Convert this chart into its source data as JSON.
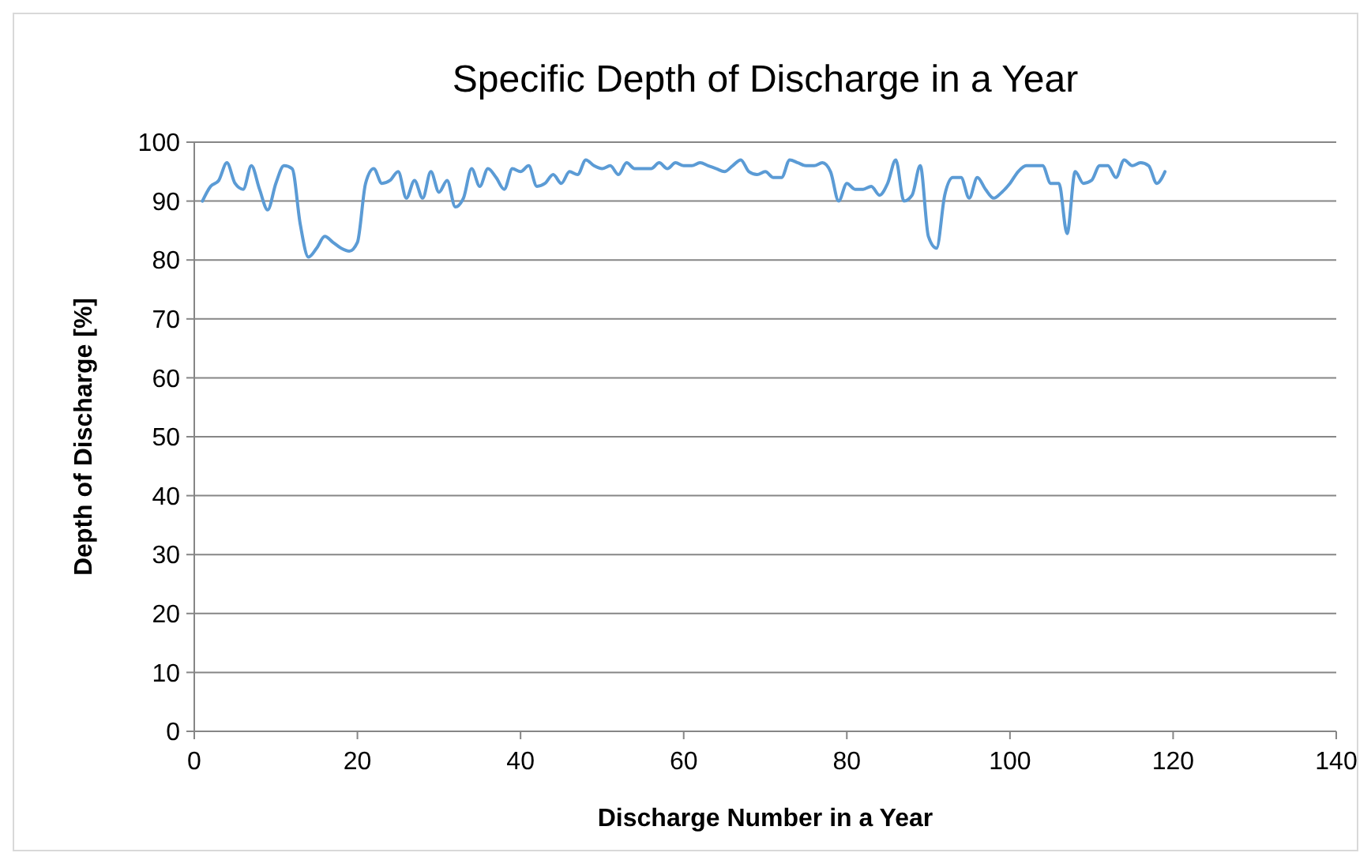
{
  "chart_data": {
    "type": "line",
    "title": "Specific Depth of Discharge in a Year",
    "xlabel": "Discharge Number in a Year",
    "ylabel": "Depth of Discharge  [%]",
    "x": [
      1,
      2,
      3,
      4,
      5,
      6,
      7,
      8,
      9,
      10,
      11,
      12,
      13,
      14,
      15,
      16,
      17,
      18,
      19,
      20,
      21,
      22,
      23,
      24,
      25,
      26,
      27,
      28,
      29,
      30,
      31,
      32,
      33,
      34,
      35,
      36,
      37,
      38,
      39,
      40,
      41,
      42,
      43,
      44,
      45,
      46,
      47,
      48,
      49,
      50,
      51,
      52,
      53,
      54,
      55,
      56,
      57,
      58,
      59,
      60,
      61,
      62,
      63,
      64,
      65,
      66,
      67,
      68,
      69,
      70,
      71,
      72,
      73,
      74,
      75,
      76,
      77,
      78,
      79,
      80,
      81,
      82,
      83,
      84,
      85,
      86,
      87,
      88,
      89,
      90,
      91,
      92,
      93,
      94,
      95,
      96,
      97,
      98,
      99,
      100,
      101,
      102,
      103,
      104,
      105,
      106,
      107,
      108,
      109,
      110,
      111,
      112,
      113,
      114,
      115,
      116,
      117,
      118,
      119
    ],
    "series": [
      {
        "color": "#5b9bd5",
        "values": [
          90,
          92.5,
          93.5,
          96.5,
          93,
          92,
          96,
          92,
          88.5,
          93,
          96,
          95.5,
          86,
          80.5,
          82,
          84,
          83,
          82,
          81.5,
          83,
          93,
          95.5,
          93,
          93.5,
          95,
          90.5,
          93.5,
          90.5,
          95,
          91.5,
          93.5,
          89,
          90.5,
          95.5,
          92.5,
          95.5,
          94,
          92,
          95.5,
          95,
          96,
          92.5,
          93,
          94.5,
          93,
          95,
          94.5,
          97,
          96,
          95.5,
          96,
          94.5,
          96.5,
          95.5,
          95.5,
          95.5,
          96.5,
          95.5,
          96.5,
          96,
          96,
          96.5,
          96,
          95.5,
          95,
          96,
          97,
          95,
          94.5,
          95,
          94,
          94,
          97,
          96.5,
          96,
          96,
          96.5,
          95,
          90,
          93,
          92,
          92,
          92.5,
          91,
          93,
          97,
          90,
          91,
          96,
          84,
          82,
          91,
          94,
          94,
          90.5,
          94,
          92,
          90.5,
          91.5,
          93,
          95,
          96,
          96,
          96,
          93,
          93,
          84.5,
          95,
          93,
          93.5,
          96,
          96,
          94,
          97,
          96,
          96.5,
          96,
          93,
          95
        ]
      }
    ],
    "xlim": [
      0,
      140
    ],
    "xticks": [
      0,
      20,
      40,
      60,
      80,
      100,
      120,
      140
    ],
    "ylim": [
      0,
      100
    ],
    "yticks": [
      0,
      10,
      20,
      30,
      40,
      50,
      60,
      70,
      80,
      90,
      100
    ],
    "grid": "y",
    "marker": "none",
    "line_style": "solid"
  }
}
